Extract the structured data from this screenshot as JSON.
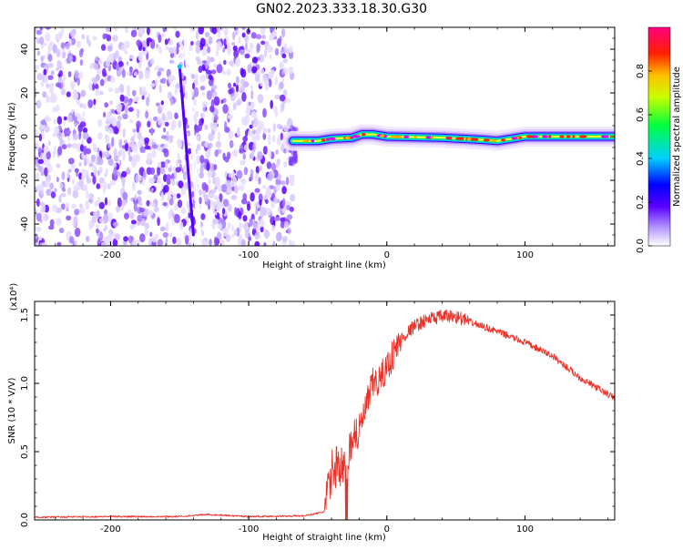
{
  "figure": {
    "title": "GN02.2023.333.18.30.G30"
  },
  "chart_data": [
    {
      "type": "heatmap",
      "xlabel": "Height of straight line (km)",
      "ylabel": "Frequency (Hz)",
      "xlim": [
        -255,
        165
      ],
      "ylim": [
        -50,
        50
      ],
      "x_ticks": [
        -200,
        -100,
        0,
        100
      ],
      "y_ticks": [
        -40,
        -20,
        0,
        20,
        40
      ],
      "colorbar": {
        "label": "Normalized spectral amplitude",
        "range": [
          0,
          1
        ],
        "ticks": [
          0.0,
          0.2,
          0.4,
          0.6,
          0.8
        ],
        "colors": [
          "#ffffff",
          "#a080ff",
          "#5a00ff",
          "#0000ff",
          "#00d0ff",
          "#00ff00",
          "#ffff00",
          "#ff0000",
          "#ff0080"
        ]
      },
      "noise_region": {
        "x_range": [
          -255,
          -68
        ],
        "amplitude_range": [
          0.05,
          0.25
        ]
      },
      "frequency_track": [
        {
          "x": -68,
          "freq": -2
        },
        {
          "x": -50,
          "freq": -2
        },
        {
          "x": -40,
          "freq": -1
        },
        {
          "x": -25,
          "freq": -0.5
        },
        {
          "x": -18,
          "freq": 1
        },
        {
          "x": -10,
          "freq": 1
        },
        {
          "x": 0,
          "freq": 0
        },
        {
          "x": 40,
          "freq": -0.5
        },
        {
          "x": 70,
          "freq": -1.5
        },
        {
          "x": 80,
          "freq": -2
        },
        {
          "x": 100,
          "freq": 0
        },
        {
          "x": 130,
          "freq": 0
        },
        {
          "x": 165,
          "freq": 0
        }
      ],
      "streak": {
        "x_start": -150,
        "freq_start": 32,
        "x_end": -140,
        "freq_end": -45
      }
    },
    {
      "type": "line",
      "xlabel": "Height of straight line (km)",
      "ylabel": "SNR (10 * V/V)",
      "y_multiplier": "(x10⁴)",
      "xlim": [
        -255,
        165
      ],
      "ylim": [
        0,
        1.6
      ],
      "x_ticks": [
        -200,
        -100,
        0,
        100
      ],
      "y_ticks": [
        0.0,
        0.5,
        1.0,
        1.5
      ],
      "series": [
        {
          "color": "#e8322a",
          "x": [
            -255,
            -200,
            -150,
            -130,
            -100,
            -60,
            -45,
            -40,
            -35,
            -30,
            -25,
            -20,
            -15,
            -10,
            -5,
            0,
            10,
            20,
            30,
            40,
            50,
            60,
            80,
            100,
            120,
            140,
            165
          ],
          "y": [
            0.02,
            0.025,
            0.025,
            0.04,
            0.025,
            0.03,
            0.06,
            0.35,
            0.42,
            0.35,
            0.62,
            0.65,
            0.82,
            1.0,
            1.02,
            1.12,
            1.32,
            1.42,
            1.47,
            1.49,
            1.49,
            1.45,
            1.38,
            1.3,
            1.2,
            1.04,
            0.89
          ]
        }
      ]
    }
  ]
}
